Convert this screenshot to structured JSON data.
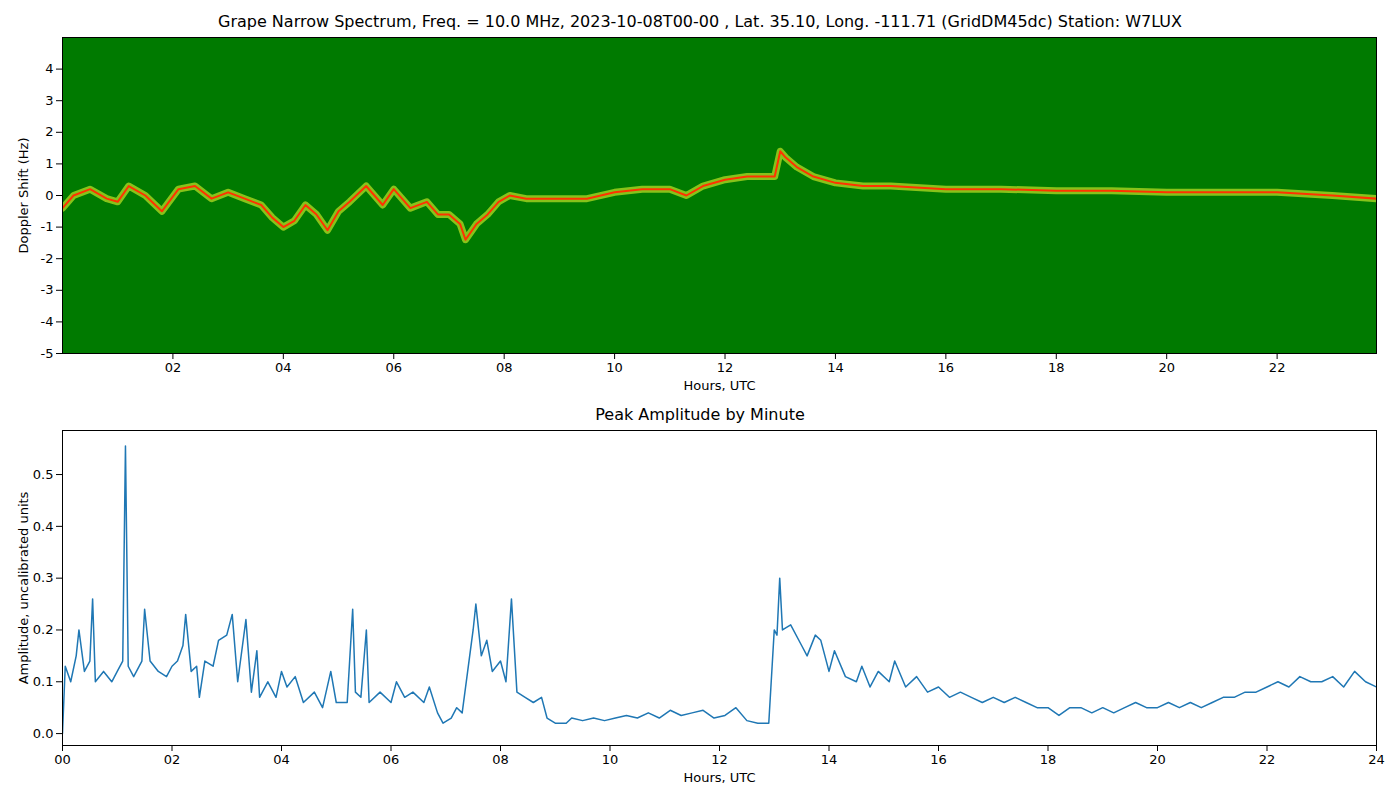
{
  "chart_data": [
    {
      "type": "line",
      "title": "Grape Narrow Spectrum, Freq. = 10.0 MHz, 2023-10-08T00-00 , Lat.  35.10, Long. -111.71 (GridDM45dc) Station: W7LUX",
      "xlabel": "Hours, UTC",
      "ylabel": "Doppler Shift (Hz)",
      "color": "#ff3300",
      "x": [
        0.0,
        0.2,
        0.5,
        0.8,
        1.0,
        1.2,
        1.5,
        1.8,
        2.1,
        2.4,
        2.7,
        3.0,
        3.3,
        3.6,
        3.8,
        4.0,
        4.2,
        4.4,
        4.6,
        4.8,
        5.0,
        5.2,
        5.5,
        5.8,
        6.0,
        6.3,
        6.6,
        6.8,
        7.0,
        7.2,
        7.3,
        7.5,
        7.7,
        7.9,
        8.1,
        8.4,
        8.7,
        9.0,
        9.5,
        10.0,
        10.5,
        11.0,
        11.3,
        11.6,
        12.0,
        12.4,
        12.9,
        13.0,
        13.1,
        13.3,
        13.6,
        14.0,
        14.5,
        15.0,
        16.0,
        17.0,
        18.0,
        19.0,
        20.0,
        21.0,
        22.0,
        23.0,
        23.8
      ],
      "values": [
        -0.4,
        0,
        0.2,
        -0.1,
        -0.2,
        0.3,
        0,
        -0.5,
        0.2,
        0.3,
        -0.1,
        0.1,
        -0.1,
        -0.3,
        -0.7,
        -1.0,
        -0.8,
        -0.3,
        -0.6,
        -1.1,
        -0.5,
        -0.2,
        0.3,
        -0.3,
        0.2,
        -0.4,
        -0.2,
        -0.6,
        -0.6,
        -0.9,
        -1.4,
        -0.9,
        -0.6,
        -0.2,
        0,
        -0.1,
        -0.1,
        -0.1,
        -0.1,
        0.1,
        0.2,
        0.2,
        0,
        0.3,
        0.5,
        0.6,
        0.6,
        1.4,
        1.2,
        0.9,
        0.6,
        0.4,
        0.3,
        0.3,
        0.2,
        0.2,
        0.15,
        0.15,
        0.1,
        0.1,
        0.1,
        0.0,
        -0.1
      ],
      "xlim": [
        0,
        23.8
      ],
      "ylim": [
        -5,
        5
      ],
      "xticks": [
        {
          "value": 2,
          "label": "02"
        },
        {
          "value": 4,
          "label": "04"
        },
        {
          "value": 6,
          "label": "06"
        },
        {
          "value": 8,
          "label": "08"
        },
        10,
        12,
        14,
        16,
        18,
        20,
        22
      ],
      "yticks": [
        -5,
        -4,
        -3,
        -2,
        -1,
        0,
        1,
        2,
        3,
        4
      ]
    },
    {
      "type": "line",
      "title": "Peak Amplitude by Minute",
      "xlabel": "Hours, UTC",
      "ylabel": "Amplitude, uncalibrated units",
      "color": "#1f77b4",
      "x": [
        0.0,
        0.05,
        0.15,
        0.25,
        0.3,
        0.4,
        0.5,
        0.55,
        0.6,
        0.75,
        0.9,
        1.0,
        1.1,
        1.15,
        1.2,
        1.3,
        1.45,
        1.5,
        1.6,
        1.75,
        1.9,
        2.0,
        2.1,
        2.2,
        2.25,
        2.35,
        2.45,
        2.5,
        2.6,
        2.75,
        2.85,
        3.0,
        3.1,
        3.2,
        3.35,
        3.45,
        3.55,
        3.6,
        3.75,
        3.9,
        4.0,
        4.1,
        4.25,
        4.4,
        4.6,
        4.75,
        4.9,
        5.0,
        5.2,
        5.3,
        5.35,
        5.45,
        5.55,
        5.6,
        5.8,
        6.0,
        6.1,
        6.25,
        6.4,
        6.6,
        6.7,
        6.85,
        6.95,
        7.1,
        7.2,
        7.3,
        7.4,
        7.5,
        7.55,
        7.65,
        7.75,
        7.85,
        8.0,
        8.1,
        8.2,
        8.3,
        8.45,
        8.6,
        8.75,
        8.85,
        9.0,
        9.2,
        9.3,
        9.5,
        9.7,
        9.9,
        10.1,
        10.3,
        10.5,
        10.7,
        10.9,
        11.1,
        11.3,
        11.5,
        11.7,
        11.9,
        12.1,
        12.3,
        12.5,
        12.7,
        12.9,
        13.0,
        13.05,
        13.1,
        13.15,
        13.3,
        13.5,
        13.6,
        13.75,
        13.85,
        14.0,
        14.1,
        14.3,
        14.5,
        14.6,
        14.75,
        14.9,
        15.1,
        15.2,
        15.4,
        15.6,
        15.8,
        16.0,
        16.2,
        16.4,
        16.6,
        16.8,
        17.0,
        17.2,
        17.4,
        17.6,
        17.8,
        18.0,
        18.2,
        18.4,
        18.6,
        18.8,
        19.0,
        19.2,
        19.4,
        19.6,
        19.8,
        20.0,
        20.2,
        20.4,
        20.6,
        20.8,
        21.0,
        21.2,
        21.4,
        21.6,
        21.8,
        22.0,
        22.2,
        22.4,
        22.6,
        22.8,
        23.0,
        23.2,
        23.4,
        23.6,
        23.8,
        24.0
      ],
      "values": [
        0.0,
        0.13,
        0.1,
        0.15,
        0.2,
        0.12,
        0.14,
        0.26,
        0.1,
        0.12,
        0.1,
        0.12,
        0.14,
        0.555,
        0.13,
        0.11,
        0.14,
        0.24,
        0.14,
        0.12,
        0.11,
        0.13,
        0.14,
        0.17,
        0.23,
        0.12,
        0.13,
        0.07,
        0.14,
        0.13,
        0.18,
        0.19,
        0.23,
        0.1,
        0.22,
        0.08,
        0.16,
        0.07,
        0.1,
        0.07,
        0.12,
        0.09,
        0.11,
        0.06,
        0.08,
        0.05,
        0.12,
        0.06,
        0.06,
        0.24,
        0.08,
        0.07,
        0.2,
        0.06,
        0.08,
        0.06,
        0.1,
        0.07,
        0.08,
        0.06,
        0.09,
        0.04,
        0.02,
        0.03,
        0.05,
        0.04,
        0.12,
        0.2,
        0.25,
        0.15,
        0.18,
        0.12,
        0.14,
        0.1,
        0.26,
        0.08,
        0.07,
        0.06,
        0.07,
        0.03,
        0.02,
        0.02,
        0.03,
        0.025,
        0.03,
        0.025,
        0.03,
        0.035,
        0.03,
        0.04,
        0.03,
        0.045,
        0.035,
        0.04,
        0.045,
        0.03,
        0.035,
        0.05,
        0.025,
        0.02,
        0.02,
        0.2,
        0.19,
        0.3,
        0.2,
        0.21,
        0.17,
        0.15,
        0.19,
        0.18,
        0.12,
        0.16,
        0.11,
        0.1,
        0.13,
        0.09,
        0.12,
        0.1,
        0.14,
        0.09,
        0.11,
        0.08,
        0.09,
        0.07,
        0.08,
        0.07,
        0.06,
        0.07,
        0.06,
        0.07,
        0.06,
        0.05,
        0.05,
        0.035,
        0.05,
        0.05,
        0.04,
        0.05,
        0.04,
        0.05,
        0.06,
        0.05,
        0.05,
        0.06,
        0.05,
        0.06,
        0.05,
        0.06,
        0.07,
        0.07,
        0.08,
        0.08,
        0.09,
        0.1,
        0.09,
        0.11,
        0.1,
        0.1,
        0.11,
        0.09,
        0.12,
        0.1,
        0.09
      ],
      "xlim": [
        0,
        24
      ],
      "ylim": [
        -0.023,
        0.585
      ],
      "xticks": [
        {
          "value": 0,
          "label": "00"
        },
        {
          "value": 2,
          "label": "02"
        },
        {
          "value": 4,
          "label": "04"
        },
        {
          "value": 6,
          "label": "06"
        },
        {
          "value": 8,
          "label": "08"
        },
        10,
        12,
        14,
        16,
        18,
        20,
        22,
        24
      ],
      "yticks": [
        {
          "value": 0,
          "label": "0.0"
        },
        {
          "value": 0.1,
          "label": "0.1"
        },
        {
          "value": 0.2,
          "label": "0.2"
        },
        {
          "value": 0.3,
          "label": "0.3"
        },
        {
          "value": 0.4,
          "label": "0.4"
        },
        {
          "value": 0.5,
          "label": "0.5"
        }
      ]
    }
  ]
}
